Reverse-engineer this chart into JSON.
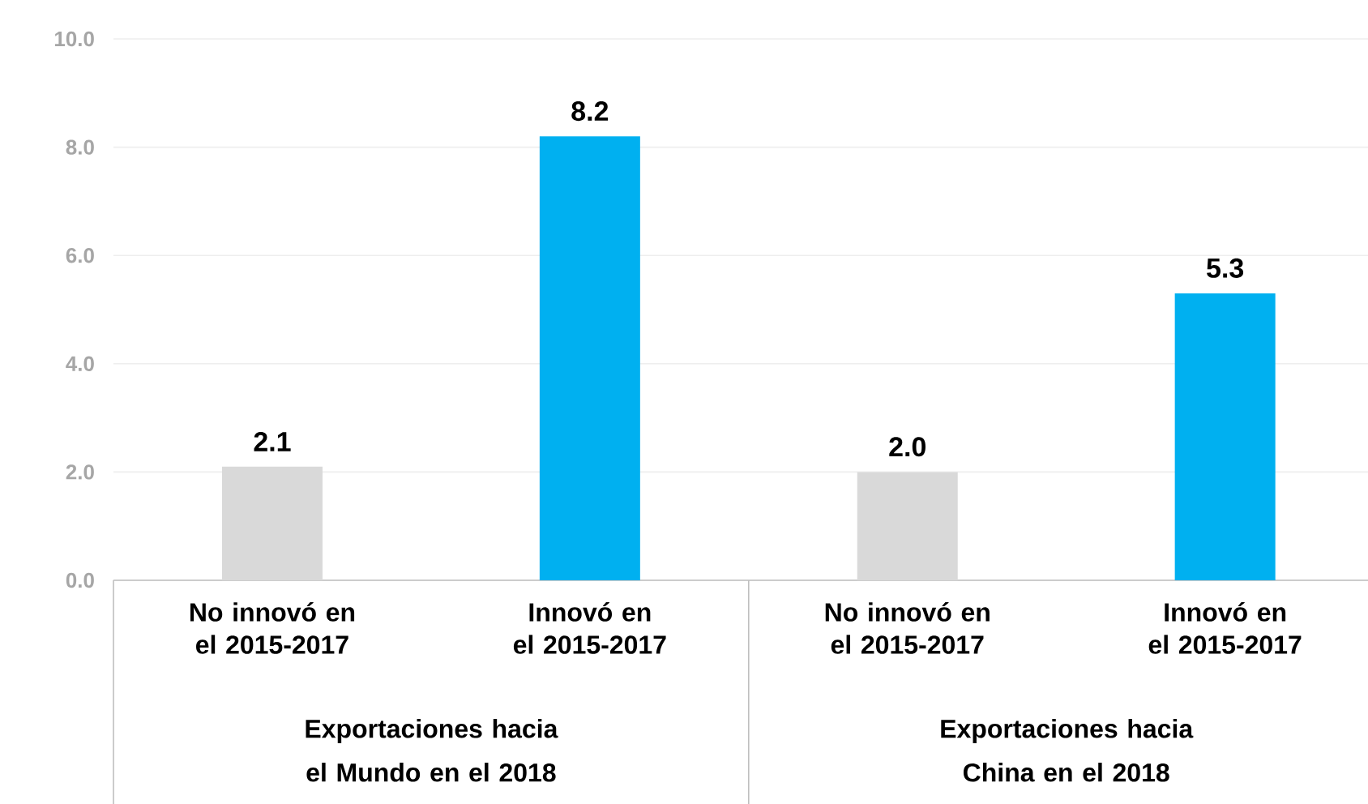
{
  "chart_data": {
    "type": "bar",
    "categories": [
      "No innovó en el 2015-2017",
      "Innovó en el 2015-2017",
      "No innovó en el 2015-2017",
      "Innovó en el 2015-2017"
    ],
    "values": [
      2.1,
      8.2,
      2.0,
      5.3
    ],
    "colors": [
      "#d9d9d9",
      "#00b0f0",
      "#d9d9d9",
      "#00b0f0"
    ],
    "ylim": [
      0,
      10
    ],
    "yticks": [
      {
        "value": 0,
        "label": "0.0"
      },
      {
        "value": 2,
        "label": "2.0"
      },
      {
        "value": 4,
        "label": "4.0"
      },
      {
        "value": 6,
        "label": "6.0"
      },
      {
        "value": 8,
        "label": "8.0"
      },
      {
        "value": 10,
        "label": "10.0"
      }
    ],
    "grid": "y",
    "value_labels": [
      "2.1",
      "8.2",
      "2.0",
      "5.3"
    ],
    "annotations": [
      "Exportaciones hacia el Mundo en el 2018",
      "Exportaciones hacia China en el  2018"
    ]
  }
}
